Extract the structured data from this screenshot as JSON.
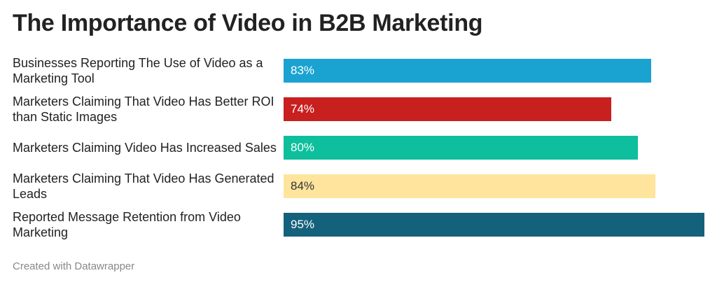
{
  "chart_data": {
    "type": "bar",
    "orientation": "horizontal",
    "title": "The Importance of Video in B2B Marketing",
    "categories": [
      "Businesses Reporting The Use of Video as a Marketing Tool",
      "Marketers Claiming That Video Has Better ROI than Static Images",
      "Marketers Claiming Video Has Increased Sales",
      "Marketers Claiming That Video Has Generated Leads",
      "Reported Message Retention from Video Marketing"
    ],
    "values": [
      83,
      74,
      80,
      84,
      95
    ],
    "value_labels": [
      "83%",
      "74%",
      "80%",
      "84%",
      "95%"
    ],
    "colors": [
      "#1aa3d1",
      "#c81f1f",
      "#0dbf9c",
      "#fee49c",
      "#14617b"
    ],
    "credit": "Created with Datawrapper"
  }
}
